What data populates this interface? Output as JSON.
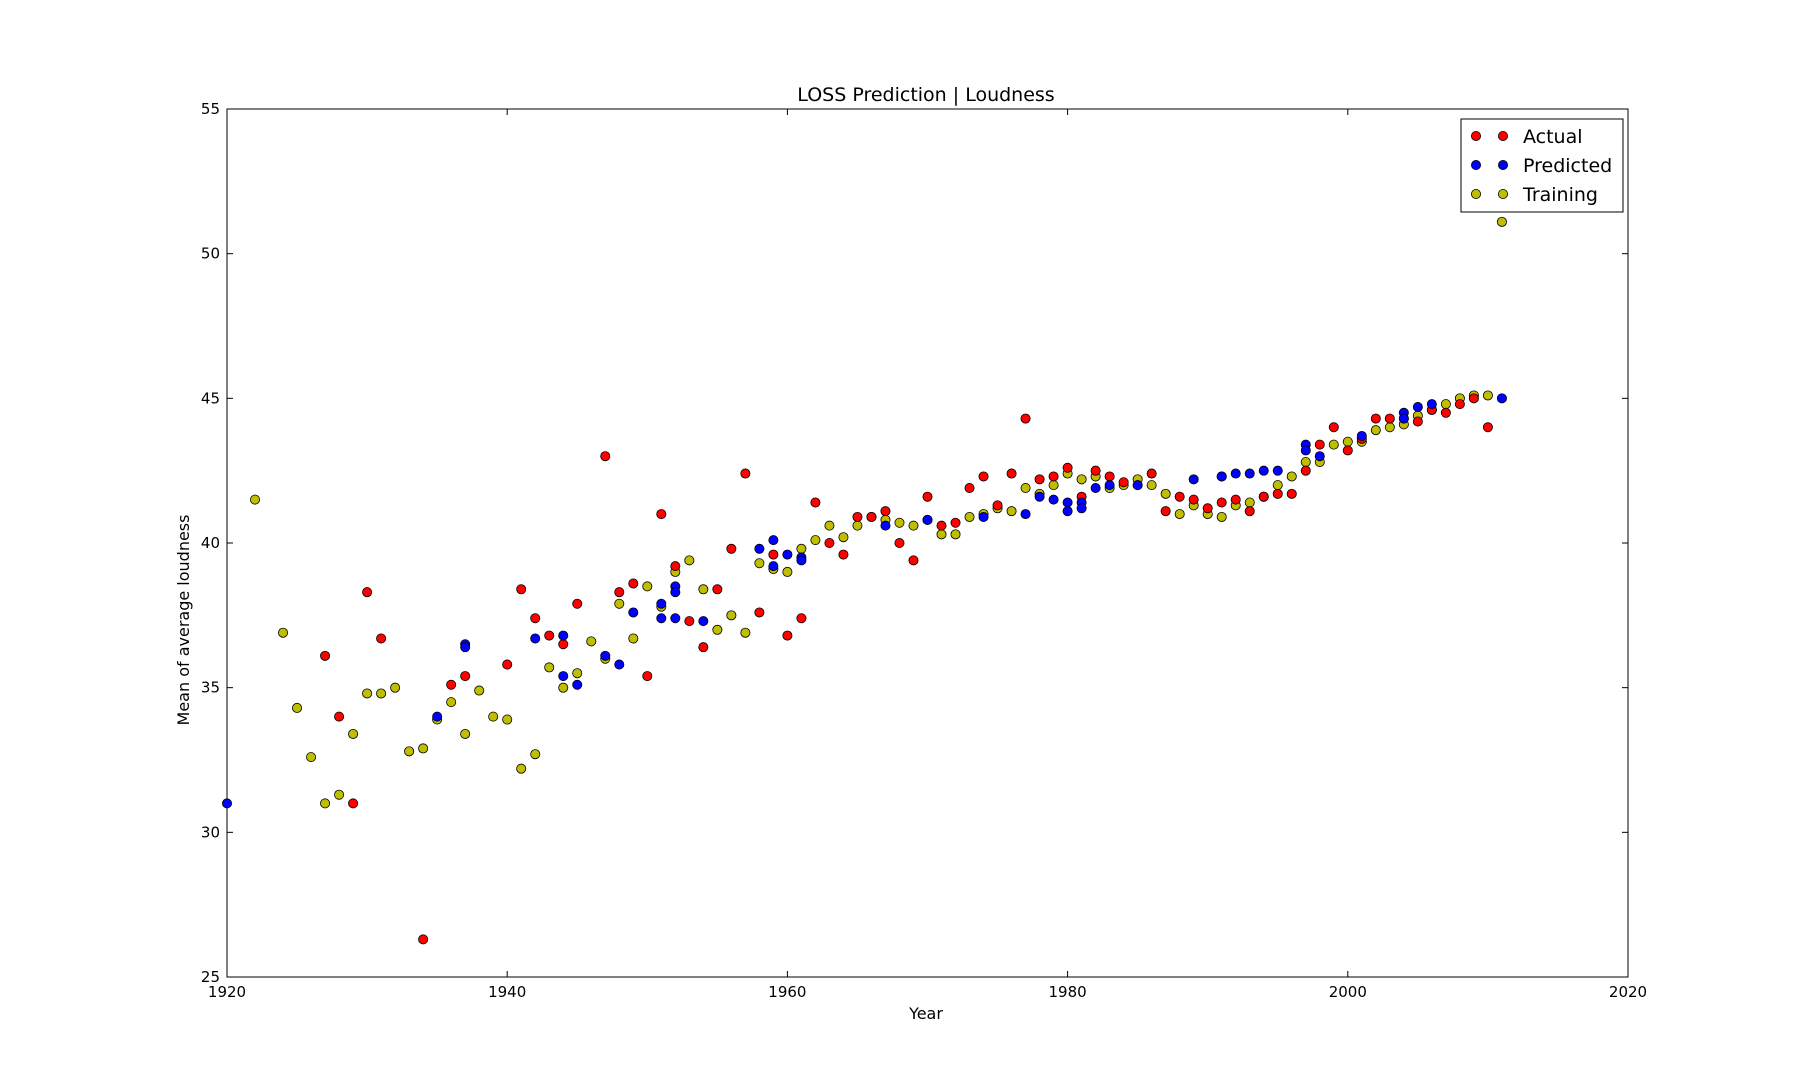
{
  "chart_data": {
    "type": "scatter",
    "title": "LOSS Prediction | Loudness",
    "xlabel": "Year",
    "ylabel": "Mean of average loudness",
    "xlim": [
      1920,
      2020
    ],
    "ylim": [
      25,
      55
    ],
    "xticks": [
      "1920",
      "1940",
      "1960",
      "1980",
      "2000",
      "2020"
    ],
    "yticks": [
      "25",
      "30",
      "35",
      "40",
      "45",
      "50",
      "55"
    ],
    "grid": false,
    "legend_position": "top-right",
    "series": [
      {
        "name": "Actual",
        "color": "#ff0000",
        "points": [
          [
            1927,
            36.1
          ],
          [
            1928,
            34.0
          ],
          [
            1929,
            31.0
          ],
          [
            1930,
            38.3
          ],
          [
            1931,
            36.7
          ],
          [
            1934,
            26.3
          ],
          [
            1936,
            35.1
          ],
          [
            1937,
            35.4
          ],
          [
            1940,
            35.8
          ],
          [
            1941,
            38.4
          ],
          [
            1942,
            37.4
          ],
          [
            1943,
            36.8
          ],
          [
            1944,
            36.5
          ],
          [
            1945,
            37.9
          ],
          [
            1947,
            43.0
          ],
          [
            1948,
            38.3
          ],
          [
            1949,
            38.6
          ],
          [
            1950,
            35.4
          ],
          [
            1951,
            41.0
          ],
          [
            1952,
            39.2
          ],
          [
            1953,
            37.3
          ],
          [
            1954,
            36.4
          ],
          [
            1955,
            38.4
          ],
          [
            1956,
            39.8
          ],
          [
            1957,
            42.4
          ],
          [
            1958,
            37.6
          ],
          [
            1959,
            39.6
          ],
          [
            1960,
            36.8
          ],
          [
            1961,
            37.4
          ],
          [
            1962,
            41.4
          ],
          [
            1963,
            40.0
          ],
          [
            1964,
            39.6
          ],
          [
            1965,
            40.9
          ],
          [
            1966,
            40.9
          ],
          [
            1967,
            41.1
          ],
          [
            1968,
            40.0
          ],
          [
            1969,
            39.4
          ],
          [
            1970,
            41.6
          ],
          [
            1971,
            40.6
          ],
          [
            1972,
            40.7
          ],
          [
            1973,
            41.9
          ],
          [
            1974,
            42.3
          ],
          [
            1975,
            41.3
          ],
          [
            1976,
            42.4
          ],
          [
            1977,
            44.3
          ],
          [
            1978,
            42.2
          ],
          [
            1979,
            42.3
          ],
          [
            1980,
            42.6
          ],
          [
            1981,
            41.6
          ],
          [
            1982,
            42.5
          ],
          [
            1983,
            42.3
          ],
          [
            1984,
            42.1
          ],
          [
            1985,
            42.0
          ],
          [
            1986,
            42.4
          ],
          [
            1987,
            41.1
          ],
          [
            1988,
            41.6
          ],
          [
            1989,
            41.5
          ],
          [
            1990,
            41.2
          ],
          [
            1991,
            41.4
          ],
          [
            1992,
            41.5
          ],
          [
            1993,
            41.1
          ],
          [
            1994,
            41.6
          ],
          [
            1995,
            41.7
          ],
          [
            1996,
            41.7
          ],
          [
            1997,
            42.5
          ],
          [
            1998,
            43.4
          ],
          [
            1999,
            44.0
          ],
          [
            2000,
            43.2
          ],
          [
            2001,
            43.6
          ],
          [
            2002,
            44.3
          ],
          [
            2003,
            44.3
          ],
          [
            2004,
            44.3
          ],
          [
            2005,
            44.2
          ],
          [
            2006,
            44.6
          ],
          [
            2007,
            44.5
          ],
          [
            2008,
            44.8
          ],
          [
            2009,
            45.0
          ],
          [
            2010,
            44.0
          ]
        ]
      },
      {
        "name": "Predicted",
        "color": "#0000ff",
        "points": [
          [
            1920,
            31.0
          ],
          [
            1935,
            34.0
          ],
          [
            1937,
            36.5
          ],
          [
            1937,
            36.4
          ],
          [
            1942,
            36.7
          ],
          [
            1944,
            36.8
          ],
          [
            1944,
            35.4
          ],
          [
            1945,
            35.1
          ],
          [
            1947,
            36.1
          ],
          [
            1948,
            35.8
          ],
          [
            1949,
            37.6
          ],
          [
            1951,
            37.4
          ],
          [
            1951,
            37.9
          ],
          [
            1952,
            37.4
          ],
          [
            1952,
            38.5
          ],
          [
            1952,
            38.3
          ],
          [
            1954,
            37.3
          ],
          [
            1958,
            39.8
          ],
          [
            1959,
            40.1
          ],
          [
            1959,
            39.2
          ],
          [
            1960,
            39.6
          ],
          [
            1961,
            39.5
          ],
          [
            1961,
            39.4
          ],
          [
            1967,
            40.6
          ],
          [
            1970,
            40.8
          ],
          [
            1974,
            40.9
          ],
          [
            1977,
            41.0
          ],
          [
            1978,
            41.6
          ],
          [
            1979,
            41.5
          ],
          [
            1980,
            41.4
          ],
          [
            1980,
            41.1
          ],
          [
            1981,
            41.4
          ],
          [
            1981,
            41.2
          ],
          [
            1982,
            41.9
          ],
          [
            1983,
            42.0
          ],
          [
            1985,
            42.0
          ],
          [
            1989,
            42.2
          ],
          [
            1991,
            42.3
          ],
          [
            1991,
            42.3
          ],
          [
            1992,
            42.4
          ],
          [
            1993,
            42.4
          ],
          [
            1994,
            42.5
          ],
          [
            1995,
            42.5
          ],
          [
            1997,
            43.4
          ],
          [
            1997,
            43.2
          ],
          [
            1998,
            43.0
          ],
          [
            2001,
            43.7
          ],
          [
            2004,
            44.5
          ],
          [
            2004,
            44.3
          ],
          [
            2005,
            44.7
          ],
          [
            2006,
            44.8
          ],
          [
            2011,
            45.0
          ]
        ]
      },
      {
        "name": "Training",
        "color": "#bfbf00",
        "points": [
          [
            1922,
            41.5
          ],
          [
            1924,
            36.9
          ],
          [
            1925,
            34.3
          ],
          [
            1926,
            32.6
          ],
          [
            1927,
            31.0
          ],
          [
            1928,
            31.3
          ],
          [
            1929,
            33.4
          ],
          [
            1930,
            34.8
          ],
          [
            1931,
            34.8
          ],
          [
            1932,
            35.0
          ],
          [
            1933,
            32.8
          ],
          [
            1934,
            32.9
          ],
          [
            1935,
            33.9
          ],
          [
            1936,
            34.5
          ],
          [
            1937,
            33.4
          ],
          [
            1938,
            34.9
          ],
          [
            1939,
            34.0
          ],
          [
            1940,
            33.9
          ],
          [
            1941,
            32.2
          ],
          [
            1942,
            32.7
          ],
          [
            1943,
            35.7
          ],
          [
            1944,
            35.0
          ],
          [
            1945,
            35.5
          ],
          [
            1946,
            36.6
          ],
          [
            1947,
            36.0
          ],
          [
            1948,
            37.9
          ],
          [
            1949,
            36.7
          ],
          [
            1950,
            38.5
          ],
          [
            1951,
            37.8
          ],
          [
            1952,
            39.0
          ],
          [
            1953,
            39.4
          ],
          [
            1954,
            38.4
          ],
          [
            1955,
            37.0
          ],
          [
            1956,
            37.5
          ],
          [
            1957,
            36.9
          ],
          [
            1958,
            39.3
          ],
          [
            1959,
            39.1
          ],
          [
            1960,
            39.0
          ],
          [
            1961,
            39.8
          ],
          [
            1962,
            40.1
          ],
          [
            1963,
            40.6
          ],
          [
            1964,
            40.2
          ],
          [
            1965,
            40.6
          ],
          [
            1966,
            40.9
          ],
          [
            1967,
            40.8
          ],
          [
            1968,
            40.7
          ],
          [
            1969,
            40.6
          ],
          [
            1970,
            40.8
          ],
          [
            1971,
            40.3
          ],
          [
            1972,
            40.3
          ],
          [
            1973,
            40.9
          ],
          [
            1974,
            41.0
          ],
          [
            1975,
            41.2
          ],
          [
            1976,
            41.1
          ],
          [
            1977,
            41.9
          ],
          [
            1978,
            41.7
          ],
          [
            1979,
            42.0
          ],
          [
            1980,
            42.4
          ],
          [
            1981,
            42.2
          ],
          [
            1982,
            42.3
          ],
          [
            1983,
            41.9
          ],
          [
            1984,
            42.0
          ],
          [
            1985,
            42.2
          ],
          [
            1986,
            42.0
          ],
          [
            1987,
            41.7
          ],
          [
            1988,
            41.0
          ],
          [
            1989,
            41.3
          ],
          [
            1990,
            41.0
          ],
          [
            1991,
            40.9
          ],
          [
            1992,
            41.3
          ],
          [
            1993,
            41.4
          ],
          [
            1994,
            41.6
          ],
          [
            1995,
            42.0
          ],
          [
            1996,
            42.3
          ],
          [
            1997,
            42.8
          ],
          [
            1998,
            42.8
          ],
          [
            1999,
            43.4
          ],
          [
            2000,
            43.5
          ],
          [
            2001,
            43.5
          ],
          [
            2002,
            43.9
          ],
          [
            2003,
            44.0
          ],
          [
            2004,
            44.1
          ],
          [
            2005,
            44.4
          ],
          [
            2006,
            44.6
          ],
          [
            2007,
            44.8
          ],
          [
            2008,
            45.0
          ],
          [
            2009,
            45.1
          ],
          [
            2010,
            45.1
          ],
          [
            2011,
            51.1
          ]
        ]
      }
    ]
  }
}
